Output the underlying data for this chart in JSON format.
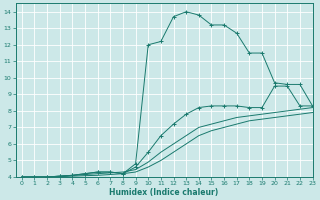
{
  "xlabel": "Humidex (Indice chaleur)",
  "xlim": [
    -0.5,
    23
  ],
  "ylim": [
    4,
    14.5
  ],
  "xticks": [
    0,
    1,
    2,
    3,
    4,
    5,
    6,
    7,
    8,
    9,
    10,
    11,
    12,
    13,
    14,
    15,
    16,
    17,
    18,
    19,
    20,
    21,
    22,
    23
  ],
  "yticks": [
    4,
    5,
    6,
    7,
    8,
    9,
    10,
    11,
    12,
    13,
    14
  ],
  "bg_color": "#cce8e8",
  "line_color": "#1a7a6e",
  "grid_color": "#b0d4d4",
  "series": [
    {
      "name": "top_marked",
      "x": [
        0,
        1,
        2,
        3,
        4,
        5,
        6,
        7,
        8,
        9,
        10,
        11,
        12,
        13,
        14,
        15,
        16,
        17,
        18,
        19,
        20,
        21,
        22,
        23
      ],
      "y": [
        4.0,
        4.0,
        4.0,
        4.05,
        4.1,
        4.2,
        4.3,
        4.3,
        4.2,
        4.8,
        12.0,
        12.2,
        13.7,
        14.0,
        13.8,
        13.2,
        13.2,
        12.7,
        11.5,
        11.5,
        9.7,
        9.6,
        9.6,
        8.3
      ],
      "marker": true
    },
    {
      "name": "mid_marked",
      "x": [
        0,
        1,
        2,
        3,
        4,
        5,
        6,
        7,
        8,
        9,
        10,
        11,
        12,
        13,
        14,
        15,
        16,
        17,
        18,
        19,
        20,
        21,
        22,
        23
      ],
      "y": [
        4.0,
        4.0,
        4.0,
        4.05,
        4.1,
        4.2,
        4.3,
        4.3,
        4.2,
        4.6,
        5.5,
        6.5,
        7.2,
        7.8,
        8.2,
        8.3,
        8.3,
        8.3,
        8.2,
        8.2,
        9.5,
        9.5,
        8.3,
        8.3
      ],
      "marker": true
    },
    {
      "name": "lower_smooth",
      "x": [
        0,
        1,
        2,
        3,
        4,
        5,
        6,
        7,
        8,
        9,
        10,
        11,
        12,
        13,
        14,
        15,
        16,
        17,
        18,
        19,
        20,
        21,
        22,
        23
      ],
      "y": [
        4.0,
        4.0,
        4.0,
        4.05,
        4.1,
        4.15,
        4.2,
        4.25,
        4.3,
        4.45,
        4.9,
        5.5,
        6.0,
        6.5,
        7.0,
        7.2,
        7.4,
        7.6,
        7.7,
        7.8,
        7.9,
        8.0,
        8.1,
        8.2
      ],
      "marker": false
    },
    {
      "name": "bottom_smooth",
      "x": [
        0,
        1,
        2,
        3,
        4,
        5,
        6,
        7,
        8,
        9,
        10,
        11,
        12,
        13,
        14,
        15,
        16,
        17,
        18,
        19,
        20,
        21,
        22,
        23
      ],
      "y": [
        4.0,
        4.0,
        4.0,
        4.02,
        4.05,
        4.08,
        4.1,
        4.15,
        4.2,
        4.3,
        4.6,
        5.0,
        5.5,
        6.0,
        6.5,
        6.8,
        7.0,
        7.2,
        7.4,
        7.5,
        7.6,
        7.7,
        7.8,
        7.9
      ],
      "marker": false
    }
  ]
}
